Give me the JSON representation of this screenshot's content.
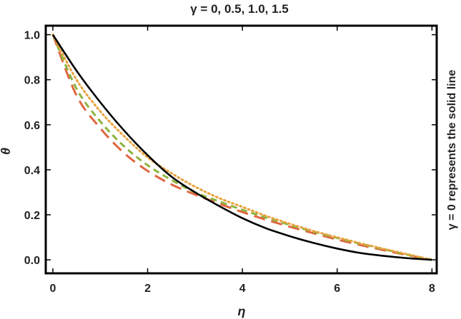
{
  "chart_data": {
    "type": "line",
    "title": "γ = 0, 0.5, 1.0, 1.5",
    "xlabel": "η",
    "ylabel": "θ",
    "right_note": "γ = 0 represents the solid line",
    "xlim": [
      -0.15,
      8.1
    ],
    "ylim": [
      -0.06,
      1.04
    ],
    "xticks": [
      "0",
      "2",
      "4",
      "6",
      "8"
    ],
    "yticks": [
      "0.0",
      "0.2",
      "0.4",
      "0.6",
      "0.8",
      "1.0"
    ],
    "xtick_values": [
      0,
      2,
      4,
      6,
      8
    ],
    "ytick_values": [
      0,
      0.2,
      0.4,
      0.6,
      0.8,
      1.0
    ],
    "grid": false,
    "series": [
      {
        "style": "solid",
        "color": "#000000",
        "x": [
          0,
          0.5,
          1,
          1.5,
          2,
          2.5,
          3,
          3.5,
          4,
          4.5,
          5,
          5.5,
          6,
          6.5,
          7,
          7.5,
          8
        ],
        "y": [
          1.0,
          0.84,
          0.7,
          0.575,
          0.465,
          0.37,
          0.3,
          0.24,
          0.185,
          0.14,
          0.105,
          0.075,
          0.05,
          0.03,
          0.017,
          0.007,
          0.0
        ]
      },
      {
        "style": "dotted",
        "color": "#E9A23B",
        "x": [
          0,
          0.5,
          1,
          1.5,
          2,
          2.5,
          3,
          3.5,
          4,
          4.5,
          5,
          5.5,
          6,
          6.5,
          7,
          7.5,
          8
        ],
        "y": [
          1.0,
          0.8,
          0.66,
          0.55,
          0.455,
          0.385,
          0.325,
          0.275,
          0.235,
          0.195,
          0.16,
          0.128,
          0.1,
          0.073,
          0.048,
          0.024,
          0.0
        ]
      },
      {
        "style": "dashed",
        "color": "#8DB33F",
        "x": [
          0,
          0.5,
          1,
          1.5,
          2,
          2.5,
          3,
          3.5,
          4,
          4.5,
          5,
          5.5,
          6,
          6.5,
          7,
          7.5,
          8
        ],
        "y": [
          1.0,
          0.76,
          0.615,
          0.505,
          0.42,
          0.355,
          0.3,
          0.26,
          0.222,
          0.188,
          0.155,
          0.125,
          0.097,
          0.071,
          0.046,
          0.022,
          0.0
        ]
      },
      {
        "style": "longdash",
        "color": "#E0663F",
        "x": [
          0,
          0.5,
          1,
          1.5,
          2,
          2.5,
          3,
          3.5,
          4,
          4.5,
          5,
          5.5,
          6,
          6.5,
          7,
          7.5,
          8
        ],
        "y": [
          1.0,
          0.73,
          0.585,
          0.475,
          0.395,
          0.335,
          0.29,
          0.25,
          0.212,
          0.178,
          0.147,
          0.118,
          0.09,
          0.065,
          0.042,
          0.02,
          0.0
        ]
      }
    ]
  }
}
